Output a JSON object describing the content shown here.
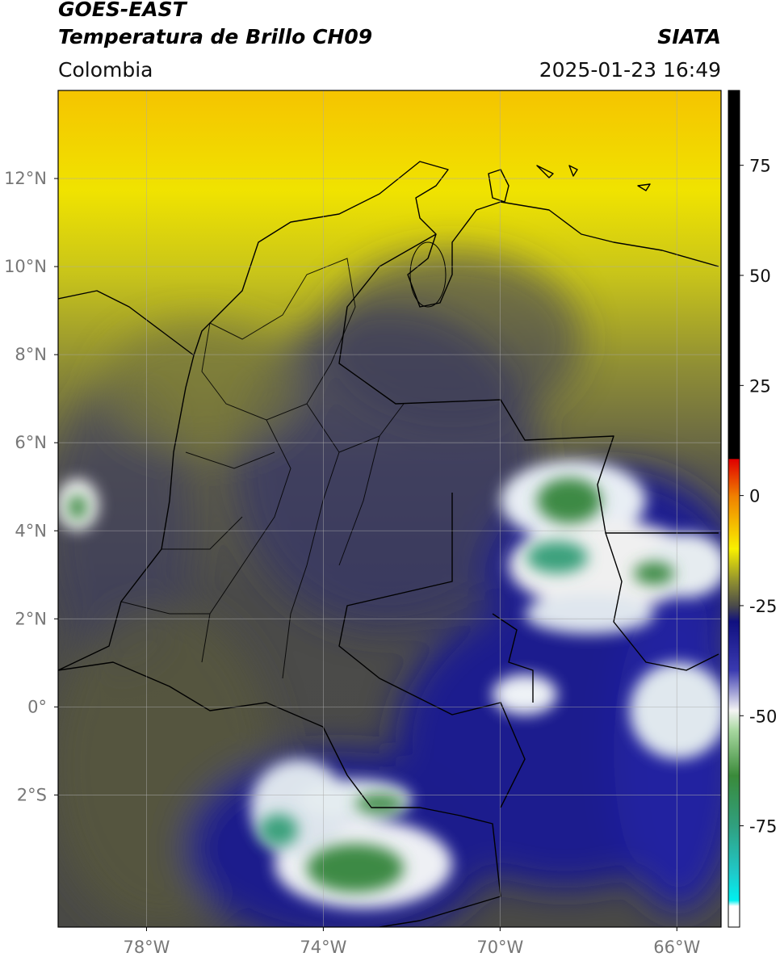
{
  "header": {
    "source": "GOES-EAST",
    "product": "Temperatura de Brillo CH09",
    "region": "Colombia",
    "agency": "SIATA",
    "datetime": "2025-01-23 16:49"
  },
  "map": {
    "lonlim": [
      -80,
      -65
    ],
    "latlim": [
      -5,
      14
    ],
    "lat_ticks": [
      {
        "value": 12,
        "label": "12°N"
      },
      {
        "value": 10,
        "label": "10°N"
      },
      {
        "value": 8,
        "label": "8°N"
      },
      {
        "value": 6,
        "label": "6°N"
      },
      {
        "value": 4,
        "label": "4°N"
      },
      {
        "value": 2,
        "label": "2°N"
      },
      {
        "value": 0,
        "label": "0°"
      },
      {
        "value": -2,
        "label": "2°S"
      }
    ],
    "lon_ticks": [
      {
        "value": -78,
        "label": "78°W"
      },
      {
        "value": -74,
        "label": "74°W"
      },
      {
        "value": -70,
        "label": "70°W"
      },
      {
        "value": -66,
        "label": "66°W"
      }
    ],
    "grid": true
  },
  "colorbar": {
    "lim": [
      -98,
      92
    ],
    "ticks": [
      75,
      50,
      25,
      0,
      -25,
      -50,
      -75
    ]
  }
}
